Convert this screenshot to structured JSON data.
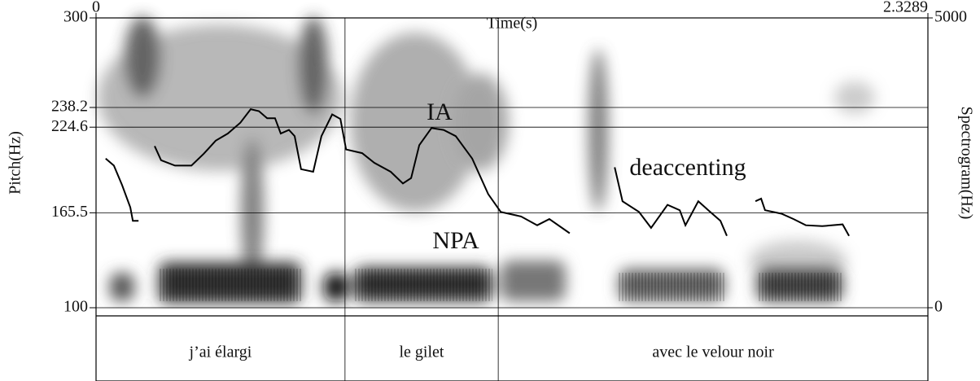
{
  "chart_data": {
    "type": "line",
    "x_label": "Time(s)",
    "y_label": "Pitch(Hz)",
    "y2_label": "Spectrogram(Hz)",
    "xlim": [
      0,
      2.3289
    ],
    "xticks": [
      0,
      2.3289
    ],
    "ylim": [
      100,
      300
    ],
    "yticks": [
      100,
      165.5,
      224.6,
      238.2,
      300
    ],
    "y2lim": [
      0,
      5000
    ],
    "y2ticks": [
      0,
      5000
    ],
    "grid": true,
    "x": [
      0.027,
      0.05,
      0.073,
      0.096,
      0.103,
      0.119,
      0.141,
      0.164,
      0.182,
      0.221,
      0.267,
      0.301,
      0.335,
      0.369,
      0.404,
      0.433,
      0.456,
      0.479,
      0.501,
      0.517,
      0.54,
      0.556,
      0.574,
      0.608,
      0.631,
      0.661,
      0.684,
      0.7,
      0.745,
      0.779,
      0.825,
      0.859,
      0.882,
      0.905,
      0.939,
      0.973,
      1.007,
      1.053,
      1.098,
      1.133,
      1.19,
      1.235,
      1.269,
      1.326,
      1.39,
      1.452,
      1.474,
      1.52,
      1.554,
      1.6,
      1.634,
      1.65,
      1.686,
      1.714,
      1.748,
      1.766,
      1.805,
      1.846,
      1.862,
      1.873,
      1.919,
      1.953,
      1.987,
      2.033,
      2.09,
      2.108
    ],
    "series": [
      {
        "color": "#000000",
        "values": [
          203.0,
          198.1,
          184.6,
          169.2,
          160.0,
          160.0,
          null,
          211.6,
          201.8,
          198.1,
          198.1,
          206.1,
          215.3,
          220.2,
          227.7,
          237.0,
          235.7,
          230.8,
          230.8,
          220.2,
          222.7,
          218.4,
          195.6,
          193.8,
          218.4,
          233.4,
          230.3,
          209.2,
          206.7,
          200.0,
          193.8,
          185.8,
          189.5,
          212.2,
          224.0,
          222.7,
          218.4,
          203.0,
          178.4,
          166.1,
          163.0,
          156.9,
          161.2,
          151.4,
          null,
          196.9,
          173.5,
          166.1,
          155.1,
          171.0,
          167.3,
          156.9,
          173.5,
          167.3,
          160.0,
          149.6,
          null,
          173.5,
          175.3,
          167.3,
          164.9,
          161.2,
          156.9,
          156.3,
          157.5,
          149.6
        ]
      }
    ],
    "annotations": [
      "IA",
      "deaccenting",
      "NPA"
    ],
    "tier": {
      "labels": [
        "j’ai élargi",
        "le gilet",
        "avec le velour noir"
      ],
      "boundaries": [
        0.697,
        1.126
      ]
    }
  }
}
